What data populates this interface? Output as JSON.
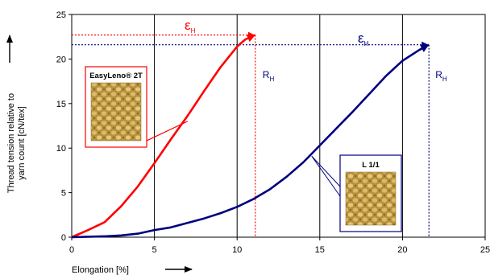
{
  "chart_data": {
    "type": "line",
    "xlabel": "Elongation [%]",
    "ylabel_line1": "Thread tension relative to",
    "ylabel_line2": "yarn count   [cN/tex]",
    "x_ticks": [
      "0",
      "5",
      "10",
      "15",
      "20",
      "25"
    ],
    "y_ticks": [
      "0",
      "5",
      "10",
      "15",
      "20",
      "25"
    ],
    "xlim": [
      0,
      25
    ],
    "ylim": [
      0,
      25
    ],
    "grid": "vertical-major",
    "series": [
      {
        "name": "EasyLeno® 2T",
        "color": "#ff0000",
        "x": [
          0,
          1,
          2,
          3,
          4,
          5,
          6,
          7,
          8,
          9,
          10,
          10.5,
          11.1
        ],
        "y": [
          0,
          0.8,
          1.7,
          3.5,
          5.7,
          8.3,
          11.0,
          13.6,
          16.4,
          19.1,
          21.4,
          22.2,
          22.7
        ]
      },
      {
        "name": "L 1/1",
        "color": "#000080",
        "x": [
          0,
          1,
          2,
          3,
          4,
          5,
          6,
          7,
          8,
          9,
          10,
          11,
          12,
          13,
          14,
          15,
          16,
          17,
          18,
          19,
          20,
          21,
          21.6
        ],
        "y": [
          0,
          0.05,
          0.1,
          0.2,
          0.4,
          0.8,
          1.1,
          1.6,
          2.1,
          2.7,
          3.4,
          4.3,
          5.4,
          6.8,
          8.4,
          10.3,
          12.2,
          14.1,
          16.1,
          18.1,
          19.8,
          21.0,
          21.6
        ]
      }
    ],
    "annotations": {
      "red_epsilon": {
        "symbol": "ε",
        "sub": "H",
        "color": "#ff0000"
      },
      "blue_epsilon": {
        "symbol": "ε",
        "sub": "H",
        "color": "#000080"
      },
      "red_R": {
        "symbol": "R",
        "sub": "H",
        "color": "#000080"
      },
      "blue_R": {
        "symbol": "R",
        "sub": "H",
        "color": "#000080"
      },
      "red_break": {
        "x": 11.1,
        "y": 22.7
      },
      "blue_break": {
        "x": 21.6,
        "y": 21.6
      }
    },
    "callouts": {
      "easyleno": {
        "label": "EasyLeno® 2T",
        "points_to": {
          "x": 7.0,
          "y": 13.0
        }
      },
      "l11": {
        "label": "L 1/1",
        "points_to": {
          "x": 15.0,
          "y": 10.0
        }
      }
    },
    "arrows": {
      "x_axis": "right",
      "y_axis": "up"
    }
  }
}
